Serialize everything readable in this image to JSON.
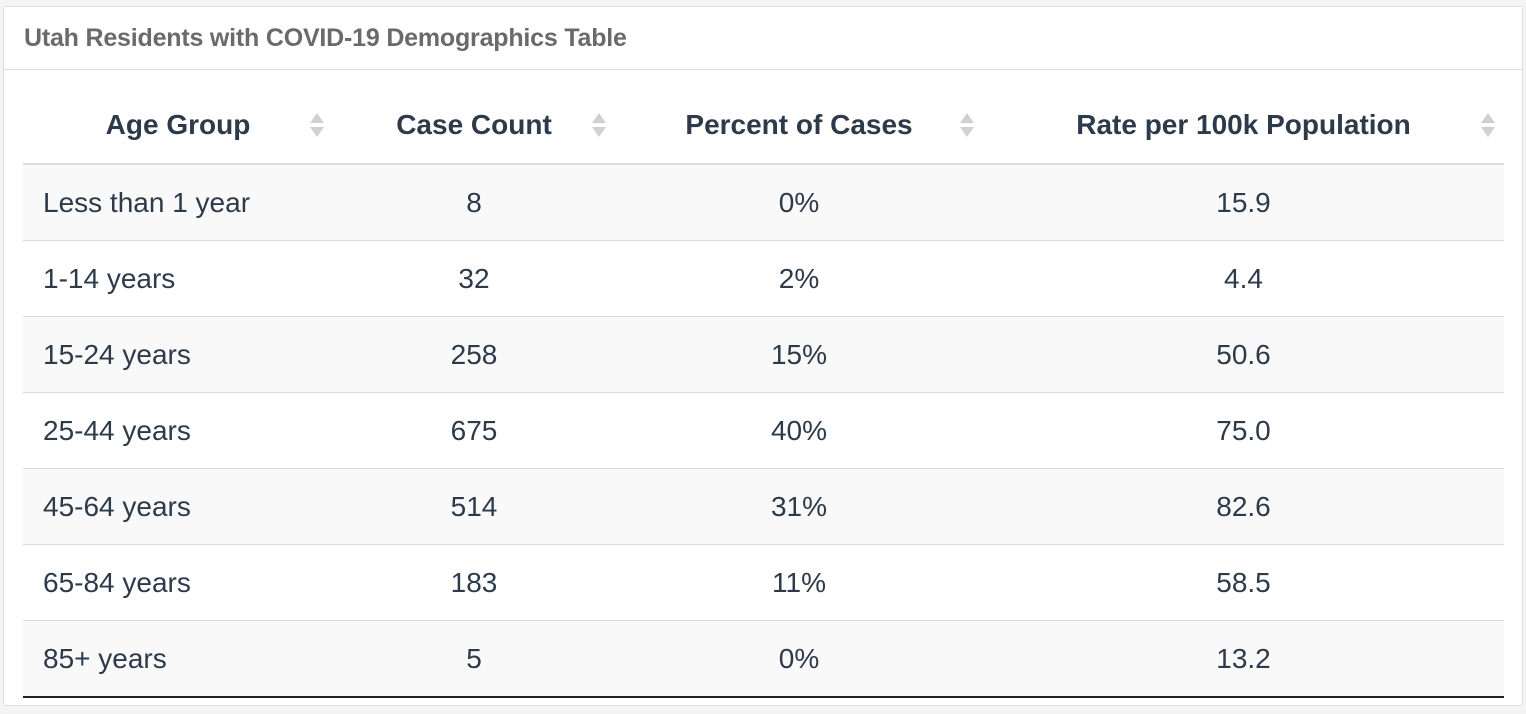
{
  "panel": {
    "title": "Utah Residents with COVID-19 Demographics Table"
  },
  "table": {
    "columns": [
      "Age Group",
      "Case Count",
      "Percent of Cases",
      "Rate per 100k Population"
    ],
    "rows": [
      [
        "Less than 1 year",
        "8",
        "0%",
        "15.9"
      ],
      [
        "1-14 years",
        "32",
        "2%",
        "4.4"
      ],
      [
        "15-24 years",
        "258",
        "15%",
        "50.6"
      ],
      [
        "25-44 years",
        "675",
        "40%",
        "75.0"
      ],
      [
        "45-64 years",
        "514",
        "31%",
        "82.6"
      ],
      [
        "65-84 years",
        "183",
        "11%",
        "58.5"
      ],
      [
        "85+ years",
        "5",
        "0%",
        "13.2"
      ]
    ]
  },
  "icons": {
    "sort": "sort-both-icon"
  },
  "colors": {
    "text": "#2d3a4a",
    "title": "#6a6a6a",
    "stripe": "#f9f9f9",
    "border": "#dcdcdc",
    "sort_icon": "#d0d0d0"
  }
}
